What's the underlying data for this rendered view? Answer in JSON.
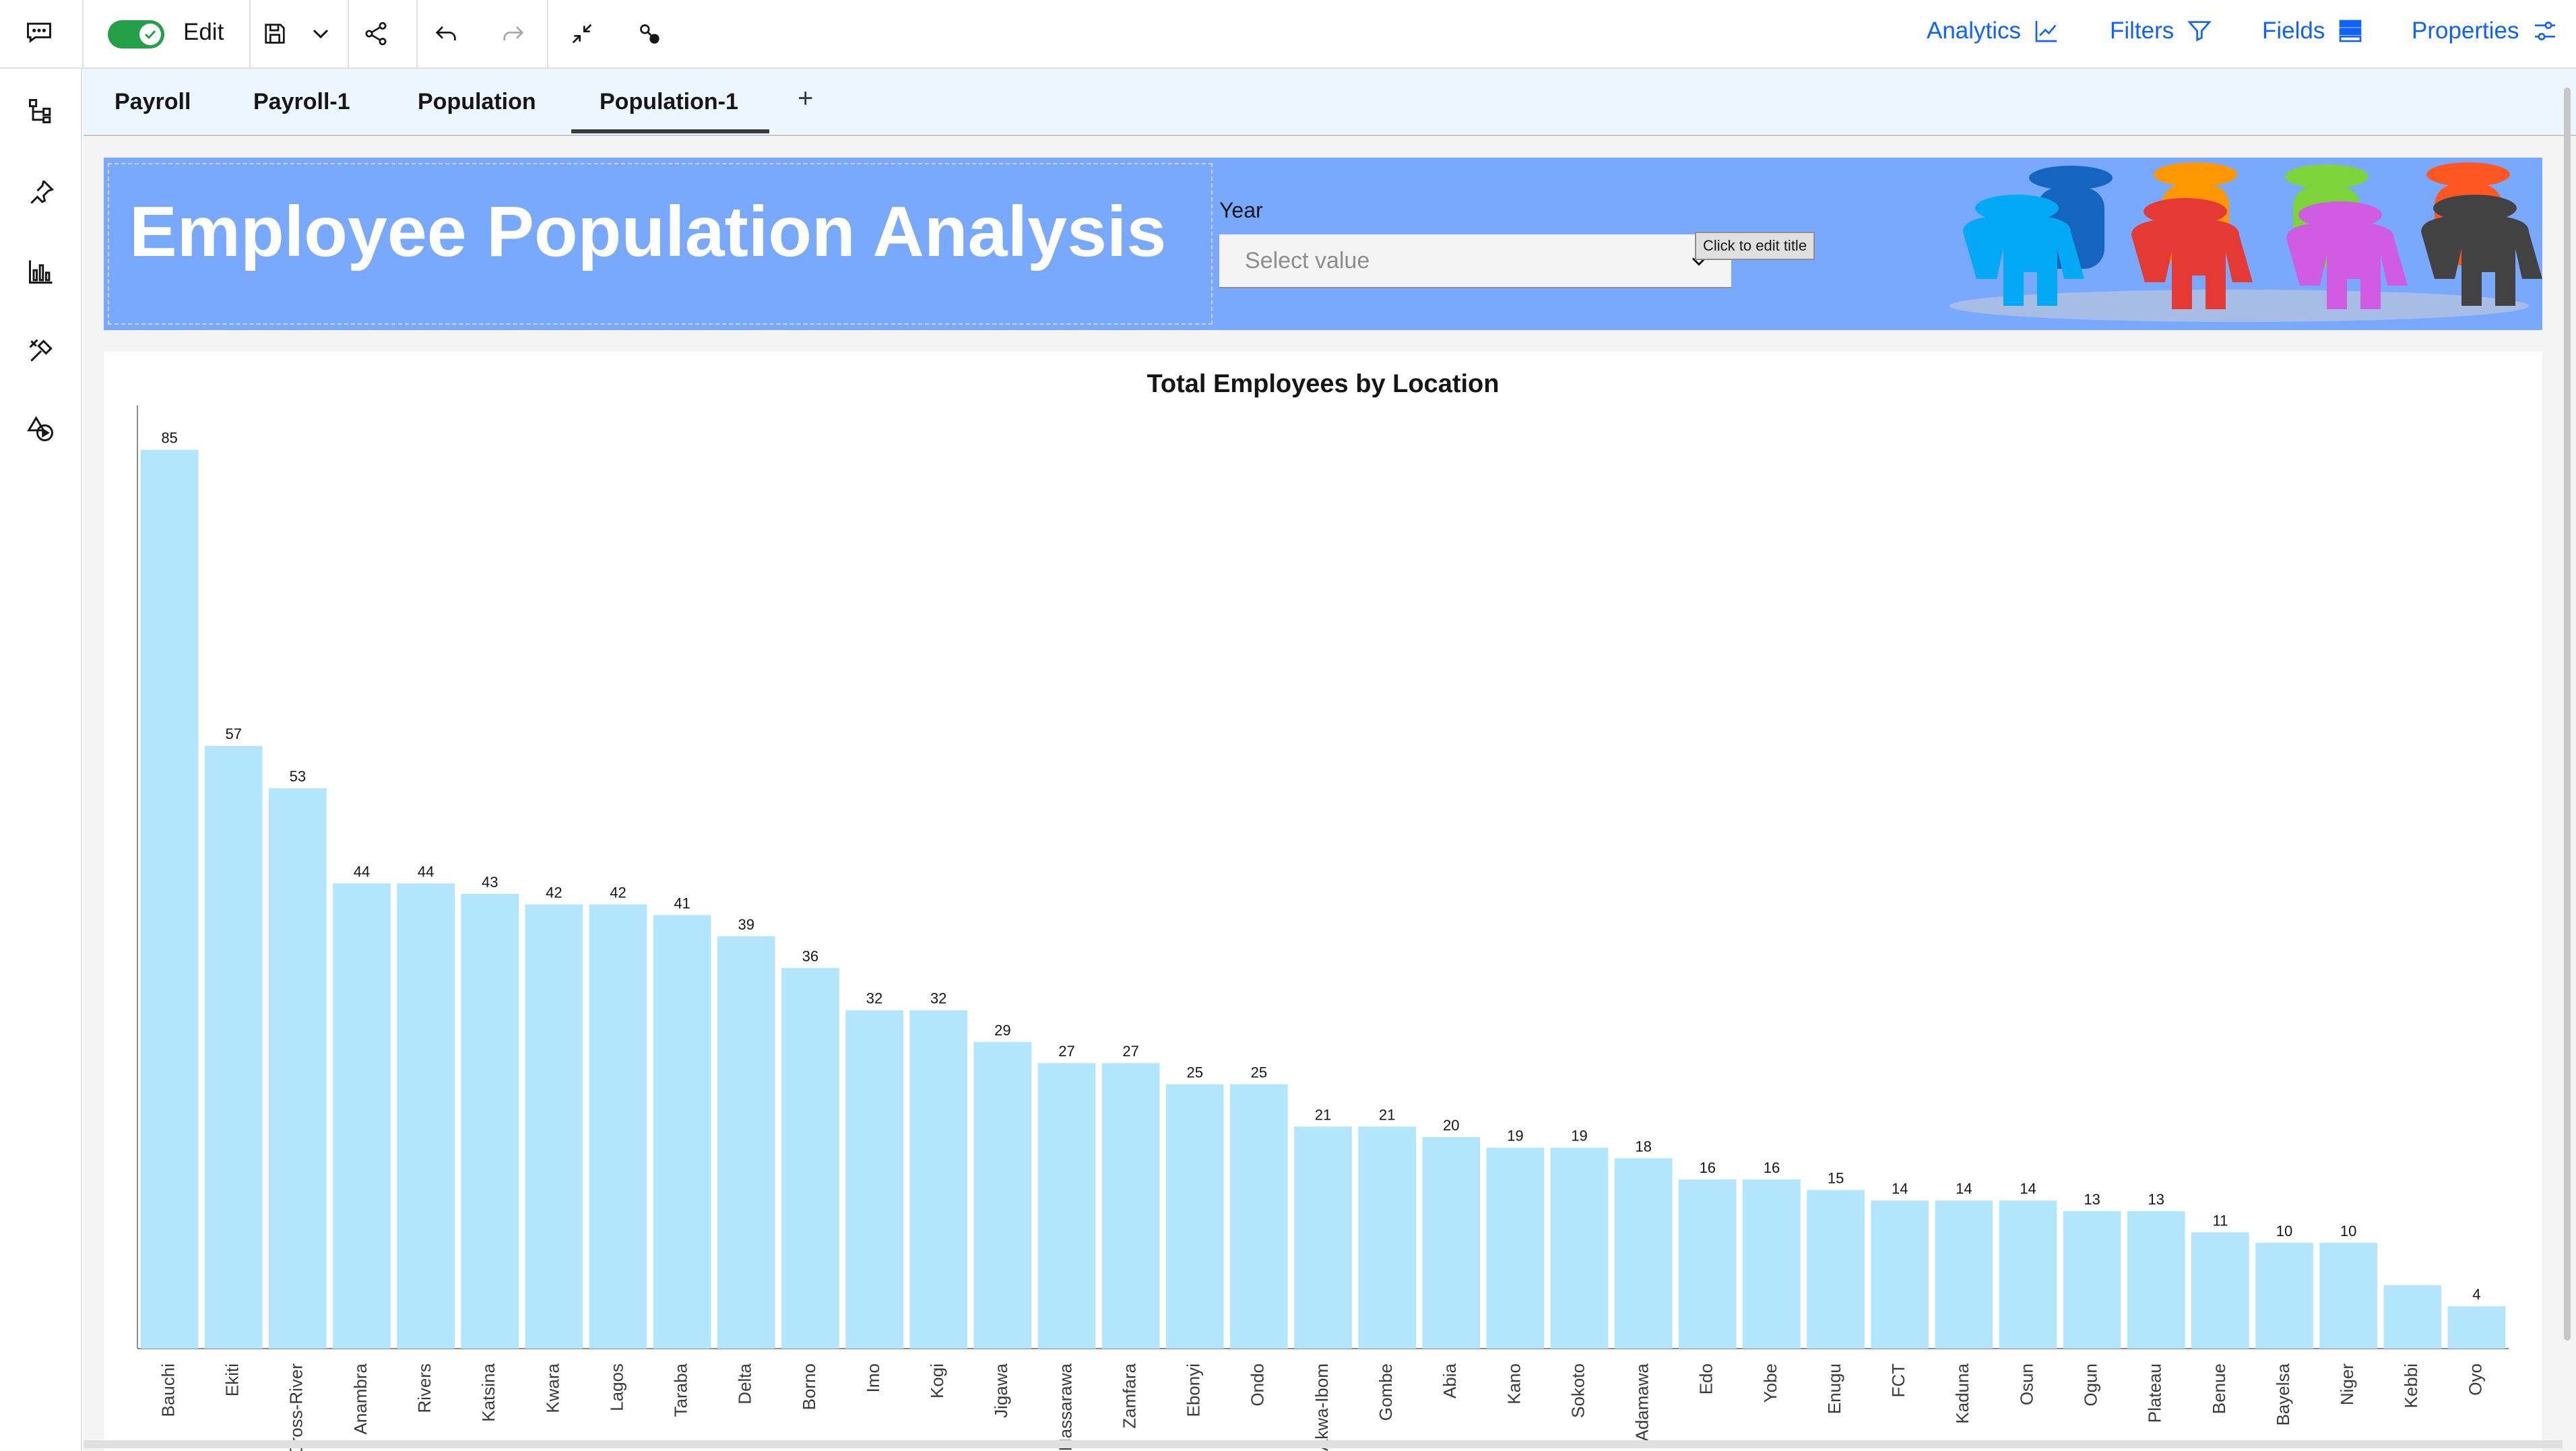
{
  "toolbar": {
    "edit_toggle_on": true,
    "edit_label": "Edit",
    "right_links": [
      {
        "label": "Analytics",
        "icon": "analytics-icon"
      },
      {
        "label": "Filters",
        "icon": "filter-icon"
      },
      {
        "label": "Fields",
        "icon": "fields-icon"
      },
      {
        "label": "Properties",
        "icon": "properties-icon"
      }
    ]
  },
  "left_rail": {
    "icons": [
      "chat-icon",
      "hierarchy-icon",
      "pin-icon",
      "bar-chart-icon",
      "tools-icon",
      "shapes-icon"
    ]
  },
  "tabs": [
    {
      "label": "Payroll",
      "active": false
    },
    {
      "label": "Payroll-1",
      "active": false
    },
    {
      "label": "Population",
      "active": false
    },
    {
      "label": "Population-1",
      "active": true
    }
  ],
  "tab_add_label": "+",
  "dashboard": {
    "title": "Employee Population Analysis",
    "filter": {
      "label": "Year",
      "placeholder": "Select value"
    },
    "tooltip": "Click to edit title",
    "header_colors": {
      "band": "#78a9ff",
      "title": "#ffffff"
    }
  },
  "chart_data": {
    "type": "bar",
    "title": "Total Employees by Location",
    "xlabel": "",
    "ylabel": "",
    "ylim": [
      0,
      86
    ],
    "bar_color": "#b3e5fc",
    "categories": [
      "Bauchi",
      "Ekiti",
      "Cross-River",
      "Anambra",
      "Rivers",
      "Katsina",
      "Kwara",
      "Lagos",
      "Taraba",
      "Delta",
      "Borno",
      "Imo",
      "Kogi",
      "Jigawa",
      "Nassarawa",
      "Zamfara",
      "Ebonyi",
      "Ondo",
      "Akwa-Ibom",
      "Gombe",
      "Abia",
      "Kano",
      "Sokoto",
      "Adamawa",
      "Edo",
      "Yobe",
      "Enugu",
      "FCT",
      "Kaduna",
      "Osun",
      "Ogun",
      "Plateau",
      "Benue",
      "Bayelsa",
      "Niger",
      "Kebbi",
      "Oyo"
    ],
    "values": [
      85,
      57,
      53,
      44,
      44,
      43,
      42,
      42,
      41,
      39,
      36,
      32,
      32,
      29,
      27,
      27,
      25,
      25,
      21,
      21,
      20,
      19,
      19,
      18,
      16,
      16,
      15,
      14,
      14,
      14,
      13,
      13,
      11,
      10,
      10,
      6,
      4
    ],
    "labels": [
      "85",
      "57",
      "53",
      "44",
      "44",
      "43",
      "42",
      "42",
      "41",
      "39",
      "36",
      "32",
      "32",
      "29",
      "27",
      "27",
      "25",
      "25",
      "21",
      "21",
      "20",
      "19",
      "19",
      "18",
      "16",
      "16",
      "15",
      "14",
      "14",
      "14",
      "13",
      "13",
      "11",
      "10",
      "10",
      "",
      "4"
    ],
    "legend": "none",
    "grid": false
  }
}
